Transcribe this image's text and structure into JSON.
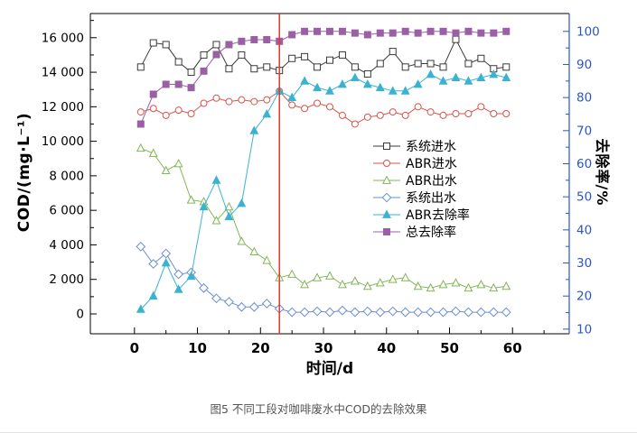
{
  "figure": {
    "caption": "图5 不同工段对咖啡废水中COD的去除效果"
  },
  "chart_data": {
    "type": "line",
    "title": "",
    "xlabel": "时间/d",
    "ylabel_left": "COD/(mg·L⁻¹)",
    "ylabel_right": "去除率/%",
    "legend_position": "middle-right-inside",
    "grid": false,
    "xlim_render": [
      -7,
      69
    ],
    "x_ticks": {
      "majors": [
        0,
        10,
        20,
        30,
        40,
        50,
        60
      ],
      "labels": [
        "0",
        "10",
        "20",
        "30",
        "40",
        "50",
        "60"
      ],
      "minors": [
        5,
        15,
        25,
        35,
        45,
        55,
        65
      ]
    },
    "left_axis": {
      "data_range": [
        0,
        16000
      ],
      "range_render": [
        -1150,
        17400
      ],
      "tick_values": [
        0,
        2000,
        4000,
        6000,
        8000,
        10000,
        12000,
        14000,
        16000
      ],
      "tick_labels": [
        "0",
        "2 000",
        "4 000",
        "6 000",
        "8 000",
        "10 000",
        "12 000",
        "14 000",
        "16 000"
      ],
      "minors": [
        1000,
        3000,
        5000,
        7000,
        9000,
        11000,
        13000,
        15000,
        17000
      ],
      "color": "#000000"
    },
    "right_axis": {
      "data_range": [
        10,
        100
      ],
      "range_render": [
        8.6,
        105.4
      ],
      "tick_values": [
        10,
        20,
        30,
        40,
        50,
        60,
        70,
        80,
        90,
        100
      ],
      "tick_labels": [
        "10",
        "20",
        "30",
        "40",
        "50",
        "60",
        "70",
        "80",
        "90",
        "100"
      ],
      "minors": [
        15,
        25,
        35,
        45,
        55,
        65,
        75,
        85,
        95
      ],
      "color": "#2b55c8"
    },
    "annotation_line": {
      "x": 23,
      "color": "#e8372c"
    },
    "x": [
      1,
      3,
      5,
      7,
      9,
      11,
      13,
      15,
      17,
      19,
      21,
      23,
      25,
      27,
      29,
      31,
      33,
      35,
      37,
      39,
      41,
      43,
      45,
      47,
      49,
      51,
      53,
      55,
      57,
      59
    ],
    "series": [
      {
        "name": "系统进水",
        "axis": "left",
        "marker": "square",
        "filled": false,
        "color": "#3a3a3a",
        "values": [
          14300,
          15700,
          15600,
          14600,
          14000,
          15000,
          15600,
          14200,
          15000,
          14200,
          14300,
          14100,
          14800,
          14900,
          14300,
          14700,
          15000,
          14300,
          13900,
          14500,
          15200,
          14300,
          14500,
          14500,
          14300,
          15900,
          14500,
          14800,
          14200,
          14300
        ]
      },
      {
        "name": "ABR进水",
        "axis": "left",
        "marker": "circle",
        "filled": false,
        "color": "#d9544a",
        "values": [
          11700,
          11900,
          11500,
          11800,
          11600,
          12200,
          12500,
          12300,
          12400,
          12300,
          12400,
          12900,
          12100,
          11900,
          12200,
          12000,
          11500,
          11000,
          11400,
          11500,
          11700,
          11500,
          12000,
          11700,
          11500,
          11600,
          11600,
          12000,
          11600,
          11600
        ]
      },
      {
        "name": "ABR出水",
        "axis": "left",
        "marker": "triangle",
        "filled": false,
        "color": "#83b656",
        "values": [
          9600,
          9300,
          8300,
          8700,
          6600,
          6500,
          5400,
          6200,
          4200,
          3600,
          3100,
          2100,
          2300,
          1700,
          2100,
          2200,
          1700,
          1900,
          1600,
          1800,
          2000,
          2100,
          1600,
          1500,
          1700,
          1800,
          1500,
          1700,
          1500,
          1600
        ]
      },
      {
        "name": "系统出水",
        "axis": "left",
        "marker": "diamond",
        "filled": false,
        "color": "#6b8fd0",
        "values": [
          3900,
          2900,
          3500,
          2300,
          2400,
          1500,
          900,
          700,
          400,
          400,
          600,
          300,
          100,
          100,
          150,
          100,
          200,
          100,
          150,
          100,
          150,
          100,
          100,
          100,
          100,
          150,
          100,
          100,
          100,
          100
        ]
      },
      {
        "name": "ABR去除率",
        "axis": "right",
        "marker": "triangle",
        "filled": true,
        "color": "#3bb2d2",
        "values": [
          16,
          20,
          30,
          22,
          26,
          47,
          55,
          44,
          48,
          70,
          75,
          82,
          80,
          85,
          83,
          82,
          84,
          86,
          84,
          83,
          82,
          82,
          84,
          87,
          85,
          86,
          85,
          86,
          87,
          86
        ]
      },
      {
        "name": "总去除率",
        "axis": "right",
        "marker": "square",
        "filled": true,
        "color": "#9a5fa5",
        "values": [
          72,
          81,
          84,
          84,
          83,
          88,
          93,
          96,
          97,
          97.5,
          97.5,
          97,
          99,
          100,
          100,
          100,
          100,
          99.5,
          99,
          99.5,
          99.5,
          100,
          99.5,
          100,
          100,
          99.5,
          100,
          99.5,
          99.5,
          100
        ]
      }
    ]
  }
}
